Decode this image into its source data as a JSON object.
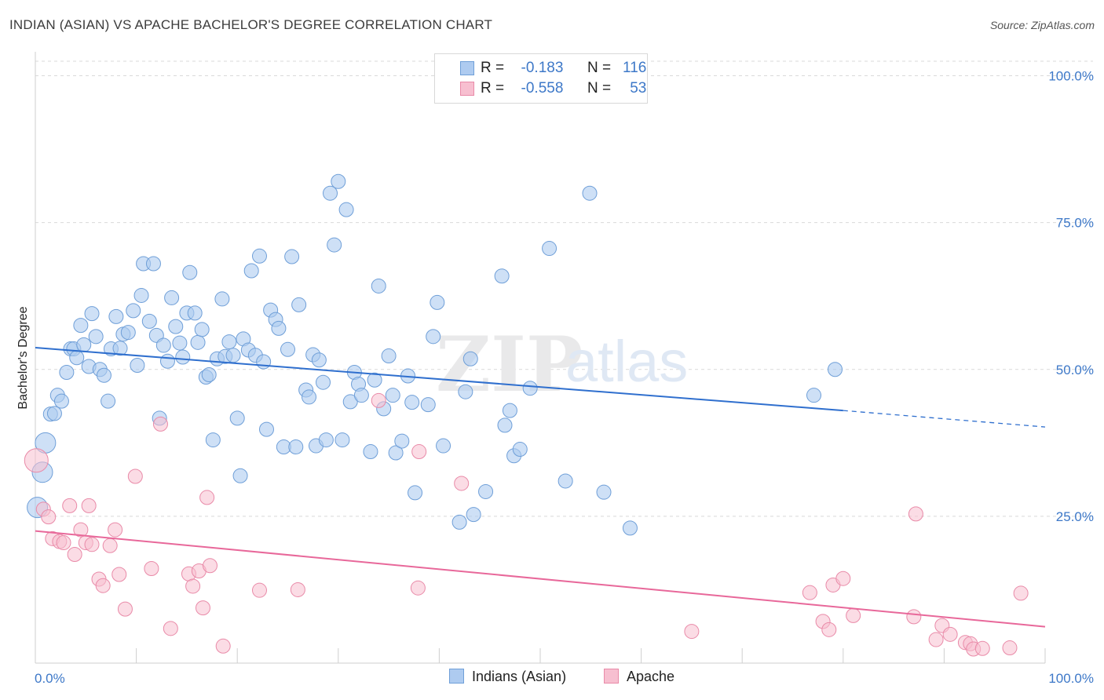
{
  "header": {
    "title": "INDIAN (ASIAN) VS APACHE BACHELOR'S DEGREE CORRELATION CHART",
    "source": "Source: ZipAtlas.com"
  },
  "legend_top": {
    "rows": [
      {
        "r_label": "R =",
        "r_value": "-0.183",
        "n_label": "N =",
        "n_value": "116"
      },
      {
        "r_label": "R =",
        "r_value": "-0.558",
        "n_label": "N =",
        "n_value": "53"
      }
    ]
  },
  "legend_bottom": {
    "items": [
      "Indians (Asian)",
      "Apache"
    ]
  },
  "colors": {
    "blue_fill": "#aecbf0",
    "blue_stroke": "#6f9fd8",
    "blue_line": "#2f6fce",
    "pink_fill": "#f7bfd0",
    "pink_stroke": "#e98aa8",
    "pink_line": "#e8689a",
    "tick_text": "#3d78c8",
    "grid": "#d9d9d9"
  },
  "watermark": {
    "zip": "ZIP",
    "atlas": "atlas"
  },
  "chart_data": {
    "type": "scatter",
    "xlabel": "",
    "ylabel": "Bachelor's Degree",
    "xlim": [
      0,
      100
    ],
    "ylim": [
      0,
      100
    ],
    "x_tick_labels": [
      "0.0%",
      "100.0%"
    ],
    "y_ticks": [
      25,
      50,
      75,
      100
    ],
    "y_tick_labels": [
      "25.0%",
      "50.0%",
      "75.0%",
      "100.0%"
    ],
    "grid": true,
    "series": [
      {
        "name": "Indians (Asian)",
        "r": -0.183,
        "n": 116,
        "trend": {
          "x": [
            0,
            80
          ],
          "y": [
            53.7,
            43
          ],
          "dashed_to": [
            100,
            40.2
          ]
        },
        "points": [
          [
            0.2,
            26.5
          ],
          [
            0.7,
            32.5
          ],
          [
            1.0,
            37.5
          ],
          [
            1.5,
            42.4
          ],
          [
            1.9,
            42.5
          ],
          [
            2.2,
            45.6
          ],
          [
            2.6,
            44.6
          ],
          [
            3.1,
            49.5
          ],
          [
            3.5,
            53.5
          ],
          [
            3.8,
            53.5
          ],
          [
            4.1,
            52
          ],
          [
            4.5,
            57.5
          ],
          [
            4.8,
            54.2
          ],
          [
            5.3,
            50.5
          ],
          [
            5.6,
            59.5
          ],
          [
            6.0,
            55.6
          ],
          [
            6.4,
            50
          ],
          [
            6.8,
            49
          ],
          [
            7.2,
            44.6
          ],
          [
            7.5,
            53.5
          ],
          [
            8.0,
            59
          ],
          [
            8.4,
            53.6
          ],
          [
            8.7,
            56
          ],
          [
            9.2,
            56.3
          ],
          [
            9.7,
            60
          ],
          [
            10.1,
            50.7
          ],
          [
            10.5,
            62.6
          ],
          [
            10.7,
            68
          ],
          [
            11.3,
            58.2
          ],
          [
            11.7,
            68
          ],
          [
            12.0,
            55.8
          ],
          [
            12.3,
            41.7
          ],
          [
            12.7,
            54.1
          ],
          [
            13.1,
            51.4
          ],
          [
            13.5,
            62.2
          ],
          [
            13.9,
            57.3
          ],
          [
            14.3,
            54.5
          ],
          [
            14.6,
            52.1
          ],
          [
            15.0,
            59.6
          ],
          [
            15.3,
            66.5
          ],
          [
            15.8,
            59.6
          ],
          [
            16.1,
            54.6
          ],
          [
            16.5,
            56.8
          ],
          [
            16.9,
            48.7
          ],
          [
            17.2,
            49.1
          ],
          [
            17.6,
            38
          ],
          [
            18.0,
            51.8
          ],
          [
            18.5,
            62
          ],
          [
            18.8,
            52.2
          ],
          [
            19.2,
            54.7
          ],
          [
            19.6,
            52.4
          ],
          [
            20.0,
            41.7
          ],
          [
            20.3,
            31.9
          ],
          [
            20.6,
            55.2
          ],
          [
            21.1,
            53.3
          ],
          [
            21.4,
            66.8
          ],
          [
            21.8,
            52.4
          ],
          [
            22.2,
            69.3
          ],
          [
            22.6,
            51.3
          ],
          [
            22.9,
            39.8
          ],
          [
            23.3,
            60.1
          ],
          [
            23.8,
            58.5
          ],
          [
            24.1,
            57
          ],
          [
            24.6,
            36.8
          ],
          [
            25.0,
            53.4
          ],
          [
            25.4,
            69.2
          ],
          [
            25.8,
            36.8
          ],
          [
            26.1,
            61
          ],
          [
            26.8,
            46.5
          ],
          [
            27.1,
            45.3
          ],
          [
            27.5,
            52.5
          ],
          [
            27.8,
            37
          ],
          [
            28.1,
            51.6
          ],
          [
            28.5,
            47.8
          ],
          [
            28.8,
            38
          ],
          [
            29.2,
            80
          ],
          [
            29.6,
            71.2
          ],
          [
            30.0,
            82
          ],
          [
            30.4,
            38
          ],
          [
            30.8,
            77.2
          ],
          [
            31.2,
            44.5
          ],
          [
            31.6,
            49.5
          ],
          [
            32.0,
            47.5
          ],
          [
            32.3,
            45.6
          ],
          [
            33.2,
            36
          ],
          [
            33.6,
            48.2
          ],
          [
            34.0,
            64.2
          ],
          [
            34.5,
            43.3
          ],
          [
            35.0,
            52.3
          ],
          [
            35.4,
            45.6
          ],
          [
            35.7,
            35.8
          ],
          [
            36.3,
            37.8
          ],
          [
            36.9,
            48.9
          ],
          [
            37.3,
            44.4
          ],
          [
            37.6,
            29
          ],
          [
            38.9,
            44
          ],
          [
            39.4,
            55.6
          ],
          [
            39.8,
            61.4
          ],
          [
            40.4,
            37
          ],
          [
            42.0,
            24
          ],
          [
            42.6,
            46.2
          ],
          [
            43.1,
            51.8
          ],
          [
            43.4,
            25.3
          ],
          [
            44.6,
            29.2
          ],
          [
            46.2,
            65.9
          ],
          [
            46.5,
            40.5
          ],
          [
            47.0,
            43
          ],
          [
            47.4,
            35.3
          ],
          [
            48.0,
            36.4
          ],
          [
            49.0,
            46.8
          ],
          [
            50.9,
            70.6
          ],
          [
            52.5,
            31
          ],
          [
            54.9,
            80
          ],
          [
            56.3,
            29.1
          ],
          [
            58.9,
            23
          ],
          [
            77.1,
            45.6
          ],
          [
            79.2,
            50
          ]
        ]
      },
      {
        "name": "Apache",
        "r": -0.558,
        "n": 53,
        "trend": {
          "x": [
            0,
            100
          ],
          "y": [
            22.5,
            6.2
          ]
        },
        "points": [
          [
            0.1,
            34.5
          ],
          [
            0.8,
            26.2
          ],
          [
            1.3,
            24.9
          ],
          [
            1.7,
            21.2
          ],
          [
            2.4,
            20.7
          ],
          [
            2.8,
            20.5
          ],
          [
            3.4,
            26.8
          ],
          [
            3.9,
            18.5
          ],
          [
            4.5,
            22.7
          ],
          [
            5.0,
            20.5
          ],
          [
            5.3,
            26.8
          ],
          [
            5.6,
            20.2
          ],
          [
            6.3,
            14.3
          ],
          [
            6.7,
            13.2
          ],
          [
            7.4,
            20
          ],
          [
            7.9,
            22.7
          ],
          [
            8.3,
            15.1
          ],
          [
            8.9,
            9.2
          ],
          [
            9.9,
            31.8
          ],
          [
            11.5,
            16.1
          ],
          [
            12.4,
            40.7
          ],
          [
            13.4,
            5.9
          ],
          [
            15.2,
            15.2
          ],
          [
            15.6,
            13.1
          ],
          [
            16.2,
            15.7
          ],
          [
            16.6,
            9.4
          ],
          [
            17.0,
            28.2
          ],
          [
            17.3,
            16.6
          ],
          [
            18.6,
            2.9
          ],
          [
            22.2,
            12.4
          ],
          [
            26.0,
            12.5
          ],
          [
            34.0,
            44.7
          ],
          [
            37.9,
            12.8
          ],
          [
            38.0,
            36
          ],
          [
            42.2,
            30.6
          ],
          [
            65.0,
            5.4
          ],
          [
            76.7,
            12
          ],
          [
            78.0,
            7.1
          ],
          [
            78.6,
            5.7
          ],
          [
            79.0,
            13.3
          ],
          [
            80.0,
            14.4
          ],
          [
            81.0,
            8.1
          ],
          [
            87.0,
            7.9
          ],
          [
            87.2,
            25.4
          ],
          [
            89.2,
            4
          ],
          [
            89.8,
            6.4
          ],
          [
            90.6,
            4.9
          ],
          [
            92.1,
            3.5
          ],
          [
            92.6,
            3.3
          ],
          [
            92.9,
            2.4
          ],
          [
            93.8,
            2.5
          ],
          [
            96.5,
            2.6
          ],
          [
            97.6,
            11.9
          ]
        ]
      }
    ]
  }
}
